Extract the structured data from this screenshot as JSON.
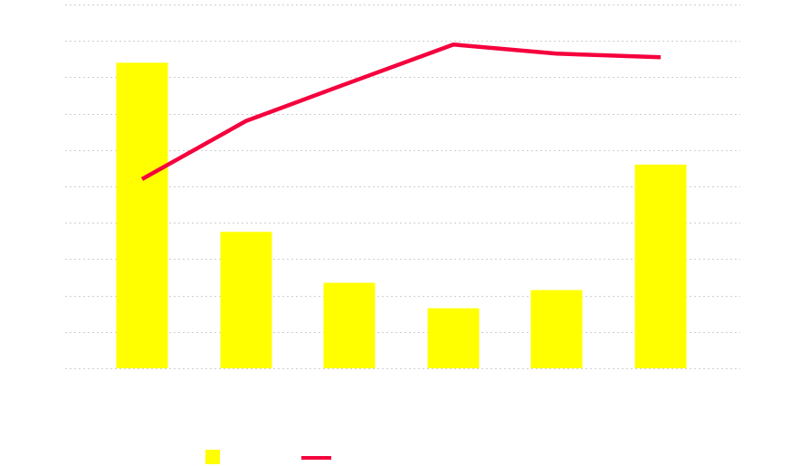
{
  "chart_data": {
    "type": "bar",
    "categories": [
      "",
      "",
      "",
      "",
      "",
      ""
    ],
    "series": [
      {
        "type": "bar",
        "values": [
          8.4,
          3.75,
          2.35,
          1.65,
          2.15,
          5.6
        ],
        "color": "#ffff00"
      },
      {
        "type": "line",
        "values": [
          5.2,
          6.8,
          7.85,
          8.9,
          8.65,
          8.55
        ],
        "color": "#f5003d"
      }
    ],
    "ylim": [
      0,
      10
    ],
    "grid": true,
    "grid_style": "dotted",
    "legend": "bottom-left",
    "title": "",
    "xlabel": "",
    "ylabel": ""
  }
}
